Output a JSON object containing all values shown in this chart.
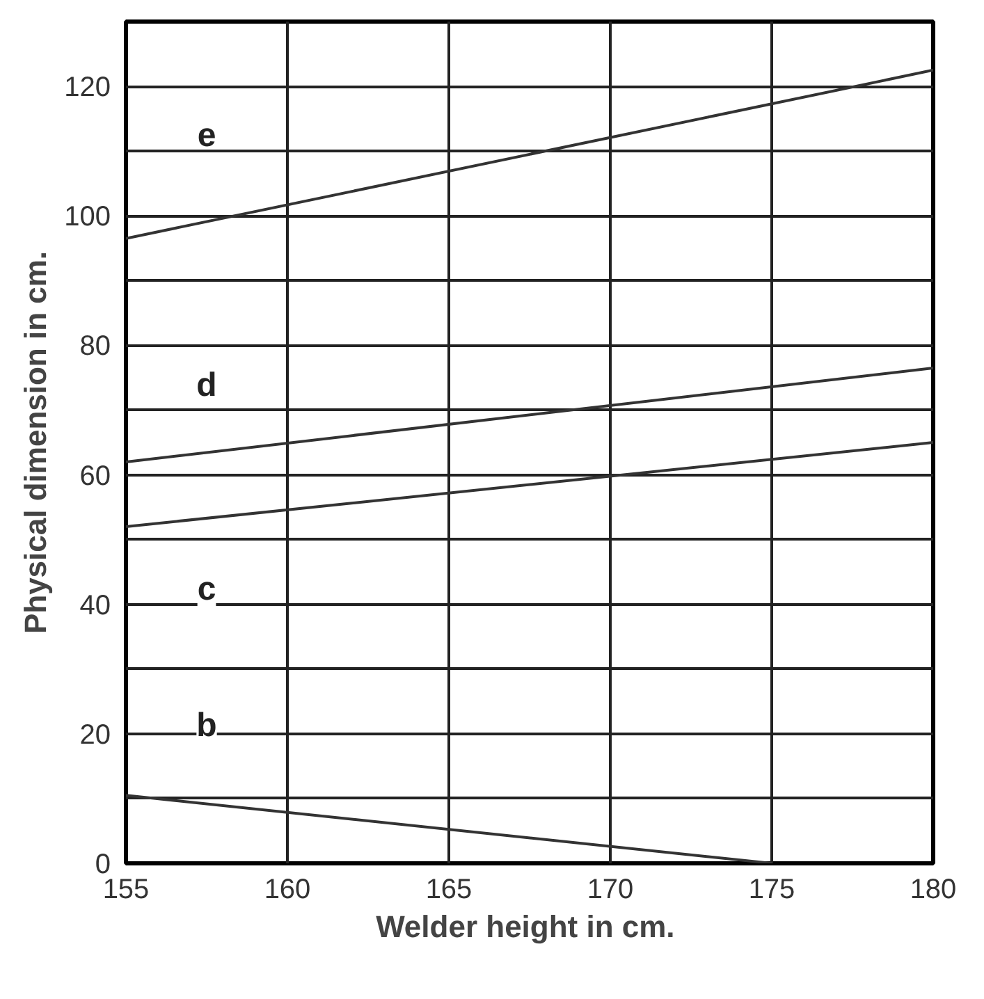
{
  "chart_data": {
    "type": "line",
    "xlabel": "Welder height in  cm.",
    "ylabel": "Physical dimension in cm.",
    "xlim": [
      155,
      180
    ],
    "ylim": [
      0,
      130
    ],
    "xticks": [
      155,
      160,
      165,
      170,
      175,
      180
    ],
    "yticks": [
      0,
      {
        "value": 10,
        "label": null
      },
      20,
      {
        "value": 30,
        "label": null
      },
      40,
      {
        "value": 50,
        "label": null
      },
      60,
      {
        "value": 70,
        "label": null
      },
      80,
      {
        "value": 90,
        "label": null
      },
      100,
      {
        "value": 110,
        "label": null
      },
      120,
      {
        "value": 130,
        "label": null
      }
    ],
    "grid": true,
    "line_style": "solid",
    "marker": "none",
    "series": [
      {
        "color": "#333333",
        "x": [
          155,
          180
        ],
        "values": [
          96.5,
          122.5
        ]
      },
      {
        "color": "#333333",
        "x": [
          155,
          180
        ],
        "values": [
          62,
          76.5
        ]
      },
      {
        "color": "#333333",
        "x": [
          155,
          180
        ],
        "values": [
          52,
          65
        ]
      },
      {
        "color": "#333333",
        "x": [
          155,
          175
        ],
        "values": [
          10.5,
          0
        ]
      }
    ],
    "annotations": [
      "e",
      "d",
      "c",
      "b"
    ]
  }
}
